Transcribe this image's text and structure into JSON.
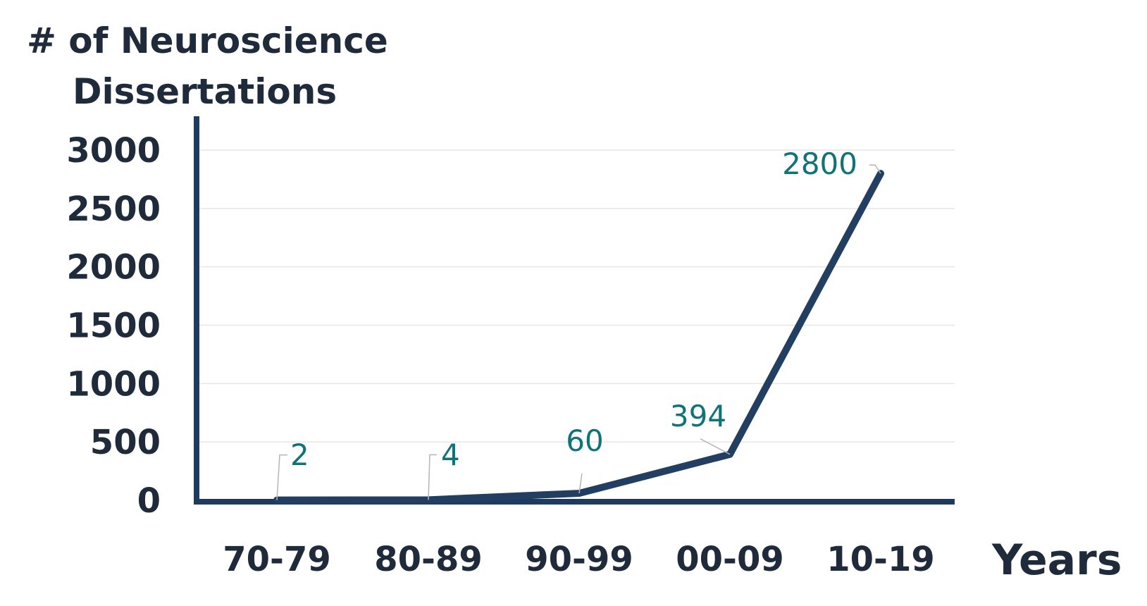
{
  "chart_data": {
    "type": "line",
    "ylabel_lines": [
      "# of Neuroscience",
      "Dissertations"
    ],
    "xlabel": "Years",
    "categories": [
      "70-79",
      "80-89",
      "90-99",
      "00-09",
      "10-19"
    ],
    "values": [
      2,
      4,
      60,
      394,
      2800
    ],
    "data_labels": [
      "2",
      "4",
      "60",
      "394",
      "2800"
    ],
    "yticks": [
      "0",
      "500",
      "1000",
      "1500",
      "2000",
      "2500",
      "3000"
    ],
    "ylim": [
      0,
      3000
    ],
    "grid": true,
    "colors": {
      "line": "#223f62",
      "axis": "#1e3a5f",
      "data_label": "#0f7377",
      "text": "#1f2a3a",
      "grid": "#e6e6e6"
    }
  }
}
